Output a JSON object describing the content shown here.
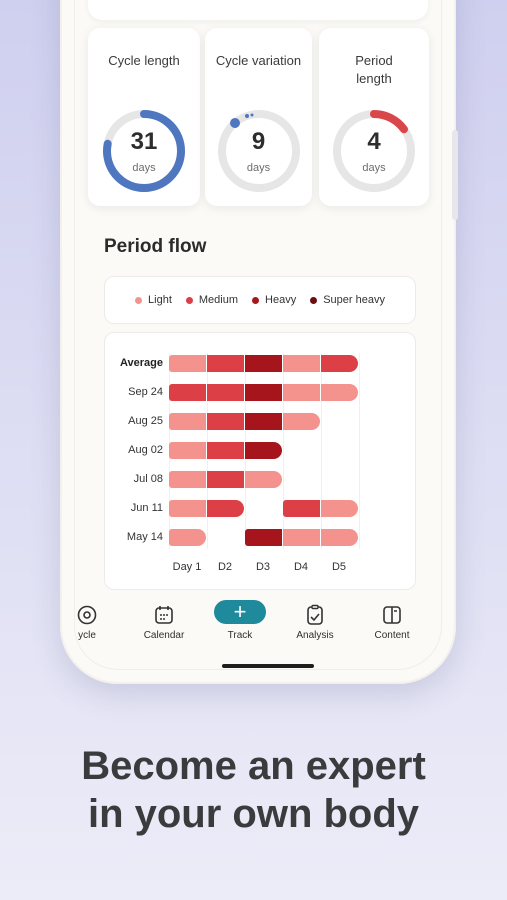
{
  "stats": [
    {
      "title": "Cycle length",
      "value": "31",
      "unit": "days",
      "progress": 0.78,
      "color": "#4e77c0"
    },
    {
      "title": "Cycle variation",
      "value": "9",
      "unit": "days",
      "progress": 0.04,
      "color": "#4e77c0"
    },
    {
      "title": "Period length",
      "value": "4",
      "unit": "days",
      "progress": 0.15,
      "color": "#d9474b"
    }
  ],
  "section_title": "Period flow",
  "legend": [
    {
      "label": "Light",
      "color": "#f0948f"
    },
    {
      "label": "Medium",
      "color": "#db3f45"
    },
    {
      "label": "Heavy",
      "color": "#a8161d"
    },
    {
      "label": "Super heavy",
      "color": "#6e0d10"
    }
  ],
  "flow_colors": {
    "light": "#f4928d",
    "medium": "#dc3f46",
    "heavy": "#a6141c"
  },
  "flow_rows": [
    {
      "label": "Average",
      "bold": true,
      "days": [
        "light",
        "medium",
        "heavy",
        "light",
        "medium"
      ]
    },
    {
      "label": "Sep 24",
      "days": [
        "medium",
        "medium",
        "heavy",
        "light",
        "light"
      ]
    },
    {
      "label": "Aug 25",
      "days": [
        "light",
        "medium",
        "heavy",
        "light",
        ""
      ]
    },
    {
      "label": "Aug 02",
      "days": [
        "light",
        "medium",
        "heavy",
        "",
        ""
      ]
    },
    {
      "label": "Jul 08",
      "days": [
        "light",
        "medium",
        "light",
        "",
        ""
      ]
    },
    {
      "label": "Jun 11",
      "days": [
        "light",
        "medium",
        "",
        "medium",
        "light"
      ]
    },
    {
      "label": "May 14",
      "days": [
        "light",
        "",
        "heavy",
        "light",
        "light"
      ]
    }
  ],
  "flow_columns": [
    "Day 1",
    "D2",
    "D3",
    "D4",
    "D5"
  ],
  "nav": [
    {
      "label": "ycle",
      "icon": "cycle-icon"
    },
    {
      "label": "Calendar",
      "icon": "calendar-icon"
    },
    {
      "label": "Track",
      "icon": "plus-icon"
    },
    {
      "label": "Analysis",
      "icon": "analysis-icon"
    },
    {
      "label": "Content",
      "icon": "book-icon"
    }
  ],
  "tagline": [
    "Become an expert",
    "in your own body"
  ]
}
